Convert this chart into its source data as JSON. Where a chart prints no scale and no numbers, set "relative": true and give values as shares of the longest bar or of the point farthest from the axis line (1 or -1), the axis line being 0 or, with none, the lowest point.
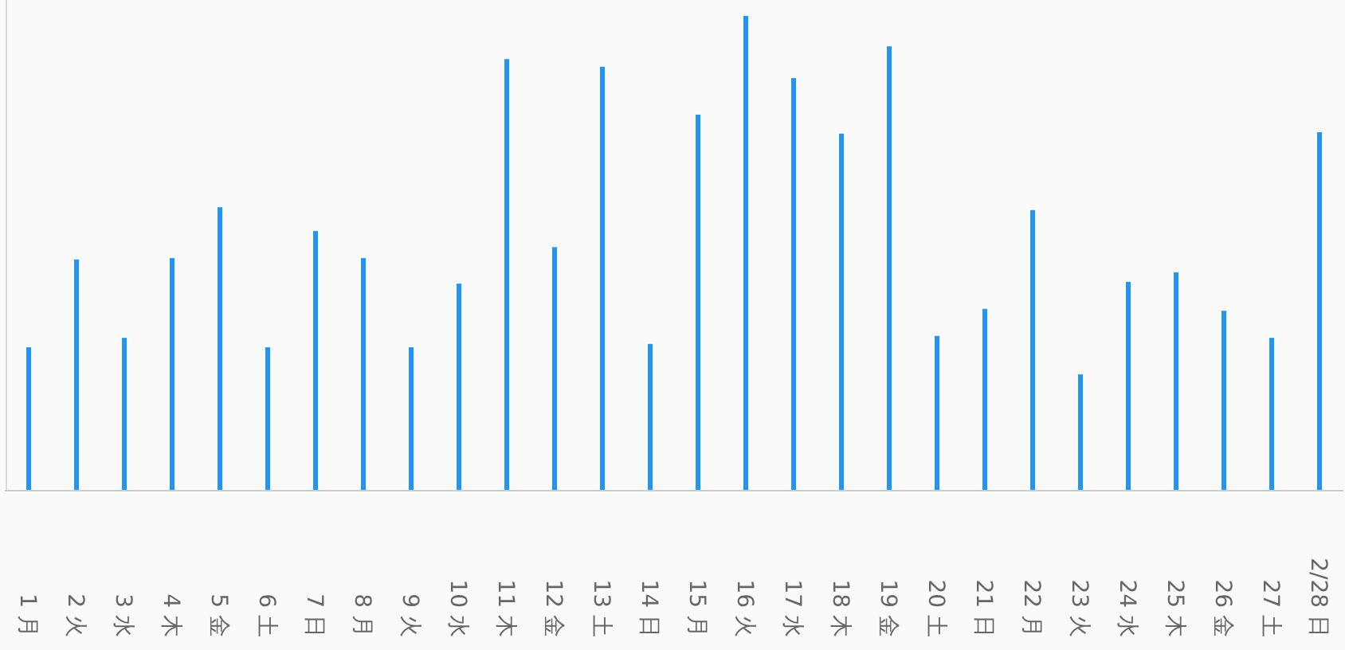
{
  "chart_data": {
    "type": "bar",
    "relative": true,
    "categories": [
      "1 月",
      "2 火",
      "3 水",
      "4 木",
      "5 金",
      "6 土",
      "7 日",
      "8 月",
      "9 火",
      "10 水",
      "11 木",
      "12 金",
      "13 土",
      "14 日",
      "15 月",
      "16 火",
      "17 水",
      "18 木",
      "19 金",
      "20 土",
      "21 日",
      "22 月",
      "23 火",
      "24 水",
      "25 木",
      "26 金",
      "27 土",
      "2/28 日"
    ],
    "series": [
      {
        "color": "#2196f3",
        "values": [
          0.302,
          0.487,
          0.322,
          0.49,
          0.597,
          0.302,
          0.547,
          0.49,
          0.302,
          0.436,
          0.909,
          0.513,
          0.893,
          0.309,
          0.792,
          1,
          0.869,
          0.752,
          0.936,
          0.326,
          0.383,
          0.591,
          0.245,
          0.44,
          0.46,
          0.379,
          0.322,
          0.755
        ]
      }
    ]
  }
}
